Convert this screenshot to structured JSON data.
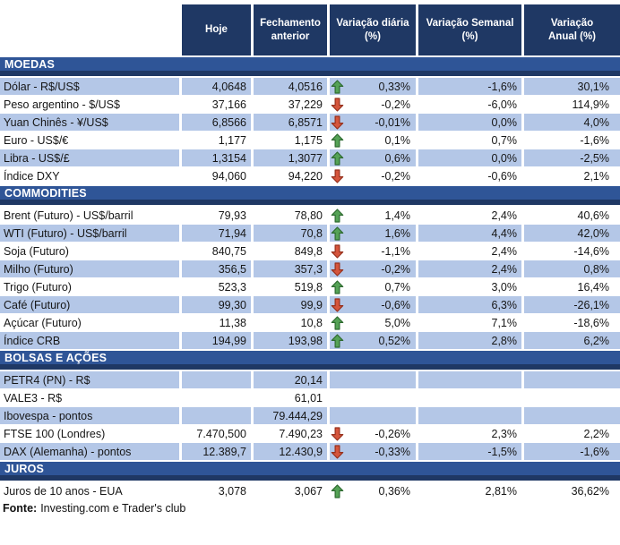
{
  "table": {
    "columns": [
      "Hoje",
      "Fechamento anterior",
      "Variação diária (%)",
      "Variação Semanal (%)",
      "Variação Anual (%)"
    ],
    "sections": [
      {
        "title": "MOEDAS",
        "rows": [
          {
            "label": "Dólar - R$/US$",
            "hoje": "4,0648",
            "fechamento": "4,0516",
            "arrow": "up",
            "diaria": "0,33%",
            "semanal": "-1,6%",
            "anual": "30,1%"
          },
          {
            "label": "Peso argentino - $/US$",
            "hoje": "37,166",
            "fechamento": "37,229",
            "arrow": "down",
            "diaria": "-0,2%",
            "semanal": "-6,0%",
            "anual": "114,9%"
          },
          {
            "label": "Yuan Chinês - ¥/US$",
            "hoje": "6,8566",
            "fechamento": "6,8571",
            "arrow": "down",
            "diaria": "-0,01%",
            "semanal": "0,0%",
            "anual": "4,0%"
          },
          {
            "label": "Euro - US$/€",
            "hoje": "1,177",
            "fechamento": "1,175",
            "arrow": "up",
            "diaria": "0,1%",
            "semanal": "0,7%",
            "anual": "-1,6%"
          },
          {
            "label": "Libra - US$/£",
            "hoje": "1,3154",
            "fechamento": "1,3077",
            "arrow": "up",
            "diaria": "0,6%",
            "semanal": "0,0%",
            "anual": "-2,5%"
          },
          {
            "label": "Índice DXY",
            "hoje": "94,060",
            "fechamento": "94,220",
            "arrow": "down",
            "diaria": "-0,2%",
            "semanal": "-0,6%",
            "anual": "2,1%"
          }
        ]
      },
      {
        "title": "COMMODITIES",
        "rows": [
          {
            "label": "Brent (Futuro) - US$/barril",
            "hoje": "79,93",
            "fechamento": "78,80",
            "arrow": "up",
            "diaria": "1,4%",
            "semanal": "2,4%",
            "anual": "40,6%"
          },
          {
            "label": "WTI (Futuro) - US$/barril",
            "hoje": "71,94",
            "fechamento": "70,8",
            "arrow": "up",
            "diaria": "1,6%",
            "semanal": "4,4%",
            "anual": "42,0%"
          },
          {
            "label": "Soja (Futuro)",
            "hoje": "840,75",
            "fechamento": "849,8",
            "arrow": "down",
            "diaria": "-1,1%",
            "semanal": "2,4%",
            "anual": "-14,6%"
          },
          {
            "label": "Milho (Futuro)",
            "hoje": "356,5",
            "fechamento": "357,3",
            "arrow": "down",
            "diaria": "-0,2%",
            "semanal": "2,4%",
            "anual": "0,8%"
          },
          {
            "label": "Trigo (Futuro)",
            "hoje": "523,3",
            "fechamento": "519,8",
            "arrow": "up",
            "diaria": "0,7%",
            "semanal": "3,0%",
            "anual": "16,4%"
          },
          {
            "label": "Café (Futuro)",
            "hoje": "99,30",
            "fechamento": "99,9",
            "arrow": "down",
            "diaria": "-0,6%",
            "semanal": "6,3%",
            "anual": "-26,1%"
          },
          {
            "label": "Açúcar (Futuro)",
            "hoje": "11,38",
            "fechamento": "10,8",
            "arrow": "up",
            "diaria": "5,0%",
            "semanal": "7,1%",
            "anual": "-18,6%"
          },
          {
            "label": "Índice CRB",
            "hoje": "194,99",
            "fechamento": "193,98",
            "arrow": "up",
            "diaria": "0,52%",
            "semanal": "2,8%",
            "anual": "6,2%"
          }
        ]
      },
      {
        "title": "BOLSAS E AÇÕES",
        "rows": [
          {
            "label": "PETR4 (PN) - R$",
            "hoje": "",
            "fechamento": "20,14",
            "arrow": null,
            "diaria": "",
            "semanal": "",
            "anual": ""
          },
          {
            "label": "VALE3 - R$",
            "hoje": "",
            "fechamento": "61,01",
            "arrow": null,
            "diaria": "",
            "semanal": "",
            "anual": ""
          },
          {
            "label": "Ibovespa - pontos",
            "hoje": "",
            "fechamento": "79.444,29",
            "arrow": null,
            "diaria": "",
            "semanal": "",
            "anual": ""
          },
          {
            "label": "FTSE 100 (Londres)",
            "hoje": "7.470,500",
            "fechamento": "7.490,23",
            "arrow": "down",
            "diaria": "-0,26%",
            "semanal": "2,3%",
            "anual": "2,2%"
          },
          {
            "label": "DAX (Alemanha) - pontos",
            "hoje": "12.389,7",
            "fechamento": "12.430,9",
            "arrow": "down",
            "diaria": "-0,33%",
            "semanal": "-1,5%",
            "anual": "-1,6%"
          }
        ]
      },
      {
        "title": "JUROS",
        "rows": [
          {
            "label": "Juros de 10 anos - EUA",
            "hoje": "3,078",
            "fechamento": "3,067",
            "arrow": "up",
            "diaria": "0,36%",
            "semanal": "2,81%",
            "anual": "36,62%"
          }
        ]
      }
    ]
  },
  "footer": {
    "label": "Fonte:",
    "text": "Investing.com e Trader's club"
  },
  "colors": {
    "header_bg": "#1F3864",
    "section_bg": "#2F5597",
    "row_shaded": "#B4C7E7",
    "arrow_up_fill": "#55A256",
    "arrow_up_border": "#2E6B30",
    "arrow_down_fill": "#D5553C",
    "arrow_down_border": "#97301C"
  }
}
